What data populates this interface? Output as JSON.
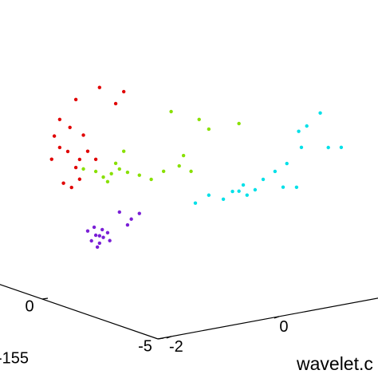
{
  "chart_data": {
    "type": "scatter3d",
    "xlabel": "wavelet.c",
    "annotations": [
      "-155"
    ],
    "xlim": [
      -2.25,
      2.5
    ],
    "ylim": [
      -5,
      2
    ],
    "zlim": [
      0,
      8
    ],
    "xticks": [
      -2,
      0
    ],
    "yticks": [
      -5,
      0
    ],
    "series": [
      {
        "color": "#e00000",
        "x": [
          -3.0,
          -3.1,
          -2.85,
          -2.7,
          -2.93,
          -2.63,
          -2.48,
          -2.33,
          -2.56,
          -3.15,
          -2.26,
          -1.96,
          -1.81,
          -2.7,
          -2.78,
          -2.63,
          -3.0,
          -2.81
        ],
        "y": [
          -2.5,
          -2.5,
          -2.5,
          -2.5,
          -2.5,
          -2.5,
          -2.5,
          -2.5,
          -2.5,
          -2.5,
          -2.5,
          -2.5,
          -2.5,
          -2.5,
          -2.5,
          -2.5,
          -2.5,
          -2.5
        ],
        "z": [
          6.49,
          6.0,
          5.44,
          4.89,
          4.47,
          4.5,
          5.33,
          5.03,
          5.86,
          5.29,
          7.26,
          6.66,
          6.99,
          7.02,
          4.29,
          5.12,
          5.61,
          6.18
        ]
      },
      {
        "color": "#88e000",
        "x": [
          -2.33,
          -2.19,
          -2.04,
          -1.89,
          -1.74,
          -2.11,
          -1.96,
          -1.52,
          -1.3,
          -1.07,
          -0.78,
          -0.56,
          -0.7,
          -0.93,
          -0.41,
          -0.23,
          0.33,
          -1.81,
          -2.56
        ],
        "y": [
          -2.5,
          -2.5,
          -2.5,
          -2.5,
          -2.5,
          -2.5,
          -2.5,
          -2.5,
          -2.5,
          -2.5,
          -2.5,
          -2.5,
          -2.5,
          -2.5,
          -2.5,
          -2.5,
          -2.5,
          -2.5,
          -2.5
        ],
        "z": [
          4.65,
          4.43,
          4.49,
          4.59,
          4.44,
          4.26,
          4.79,
          4.28,
          4.08,
          4.26,
          4.34,
          4.1,
          4.64,
          6.09,
          5.68,
          5.32,
          5.32,
          5.12,
          4.8
        ]
      },
      {
        "color": "#00e0e8",
        "x": [
          -0.48,
          -0.23,
          0.04,
          0.21,
          0.41,
          0.63,
          0.78,
          1.0,
          1.15,
          1.22,
          1.4,
          1.49,
          1.44,
          1.59,
          1.84,
          1.99,
          2.23,
          0.48,
          0.33
        ],
        "y": [
          -2.5,
          -2.5,
          -2.5,
          -2.5,
          -2.5,
          -2.5,
          -2.5,
          -2.5,
          -2.5,
          -2.5,
          -2.5,
          -2.5,
          -2.5,
          -2.5,
          -2.5,
          -2.5,
          -2.5,
          -2.5,
          -2.5
        ],
        "z": [
          3.08,
          3.25,
          3.04,
          3.23,
          3.37,
          3.15,
          3.43,
          3.61,
          3.07,
          3.79,
          2.99,
          4.21,
          4.73,
          4.85,
          5.18,
          4.05,
          3.98,
          3.03,
          3.2
        ]
      },
      {
        "color": "#7a1fd6",
        "x": [
          -2.48,
          -2.41,
          -2.33,
          -2.26,
          -2.19,
          -2.11,
          -2.36,
          -2.21,
          -2.3,
          -2.07,
          -2.26,
          -1.89,
          -1.67,
          -1.52,
          -1.74
        ],
        "y": [
          -2.5,
          -2.5,
          -2.5,
          -2.5,
          -2.5,
          -2.5,
          -2.5,
          -2.5,
          -2.5,
          -2.5,
          -2.5,
          -2.5,
          -2.5,
          -2.5,
          -2.5
        ],
        "z": [
          2.83,
          2.5,
          2.65,
          2.38,
          2.54,
          2.66,
          2.91,
          2.79,
          2.27,
          2.4,
          2.61,
          3.24,
          2.95,
          3.08,
          2.79
        ]
      }
    ]
  }
}
